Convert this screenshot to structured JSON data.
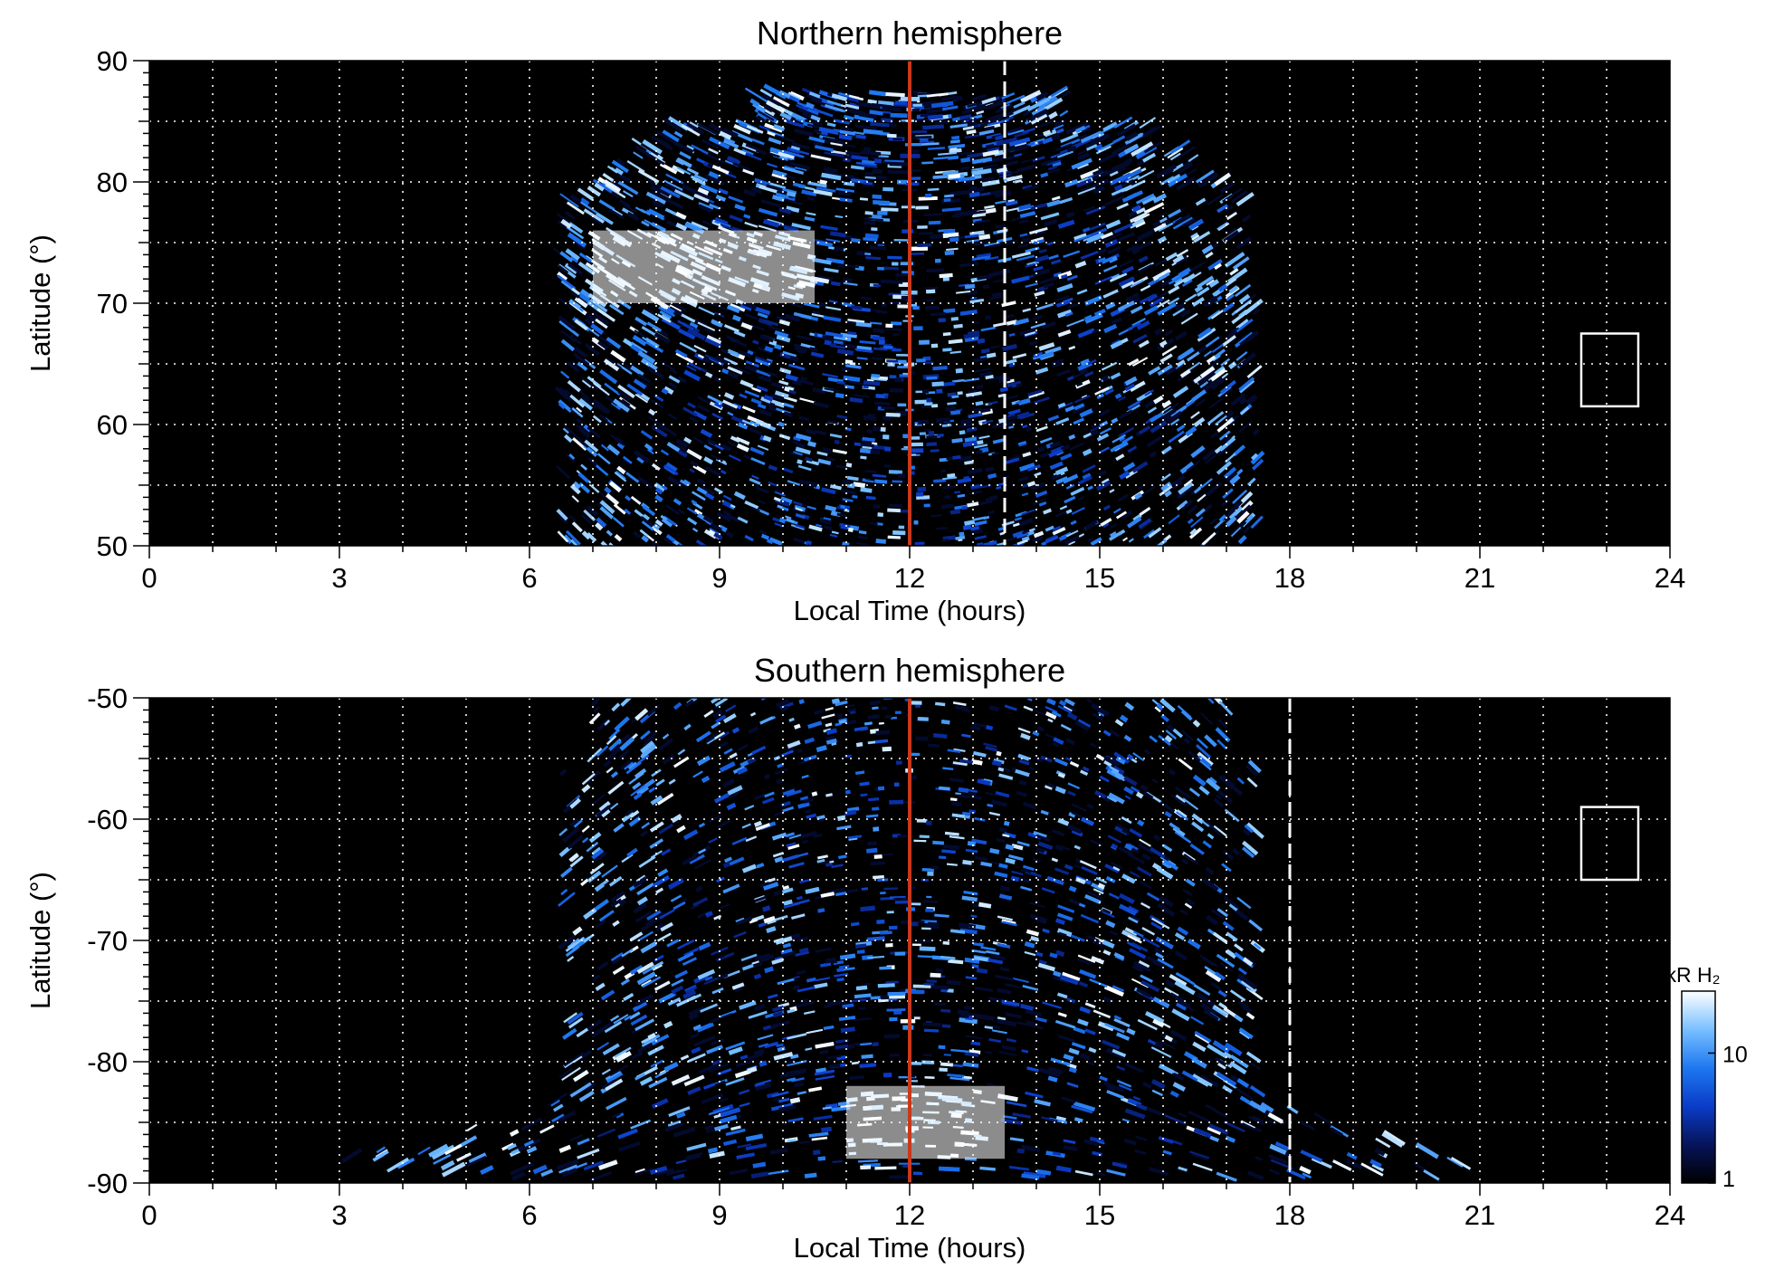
{
  "chart_data": [
    {
      "type": "heatmap",
      "title": "Northern hemisphere",
      "xlabel": "Local Time (hours)",
      "ylabel": "Latitude (°)",
      "xlim": [
        0,
        24
      ],
      "ylim": [
        50,
        90
      ],
      "xticks": [
        "0",
        "3",
        "6",
        "9",
        "12",
        "15",
        "18",
        "21",
        "24"
      ],
      "yticks": [
        "50",
        "60",
        "70",
        "80",
        "90"
      ],
      "grid": true,
      "markers": {
        "solid_line_local_time": 12,
        "solid_line_color": "#c8381c",
        "dashed_line_local_time": 13.5
      },
      "box": {
        "local_time": [
          22.6,
          23.5
        ],
        "latitude": [
          61.5,
          67.5
        ]
      },
      "coverage": {
        "local_time_range": [
          6.5,
          18
        ],
        "latitude_range": [
          50,
          87.5
        ],
        "bright_region": {
          "local_time": [
            7,
            10.5
          ],
          "latitude": [
            70,
            76
          ]
        }
      }
    },
    {
      "type": "heatmap",
      "title": "Southern hemisphere",
      "xlabel": "Local Time (hours)",
      "ylabel": "Latitude (°)",
      "xlim": [
        0,
        24
      ],
      "ylim": [
        -90,
        -50
      ],
      "xticks": [
        "0",
        "3",
        "6",
        "9",
        "12",
        "15",
        "18",
        "21",
        "24"
      ],
      "yticks": [
        "-90",
        "-80",
        "-70",
        "-60",
        "-50"
      ],
      "grid": true,
      "markers": {
        "solid_line_local_time": 12,
        "solid_line_color": "#c8381c",
        "dashed_line_local_time": 18
      },
      "box": {
        "local_time": [
          22.6,
          23.5
        ],
        "latitude": [
          -65,
          -59
        ]
      },
      "coverage": {
        "local_time_range": [
          3.2,
          21.5
        ],
        "latitude_range": [
          -89.5,
          -50
        ],
        "bright_region": {
          "local_time": [
            11,
            13.5
          ],
          "latitude": [
            -88,
            -82
          ]
        }
      }
    }
  ],
  "colorbar": {
    "title": "kR H₂",
    "scale": "log",
    "range": [
      1,
      30
    ],
    "ticks": [
      "1",
      "10"
    ],
    "colors": [
      "#000000",
      "#06145a",
      "#0a3cc8",
      "#1e78f0",
      "#78c0ff",
      "#ffffff"
    ]
  }
}
